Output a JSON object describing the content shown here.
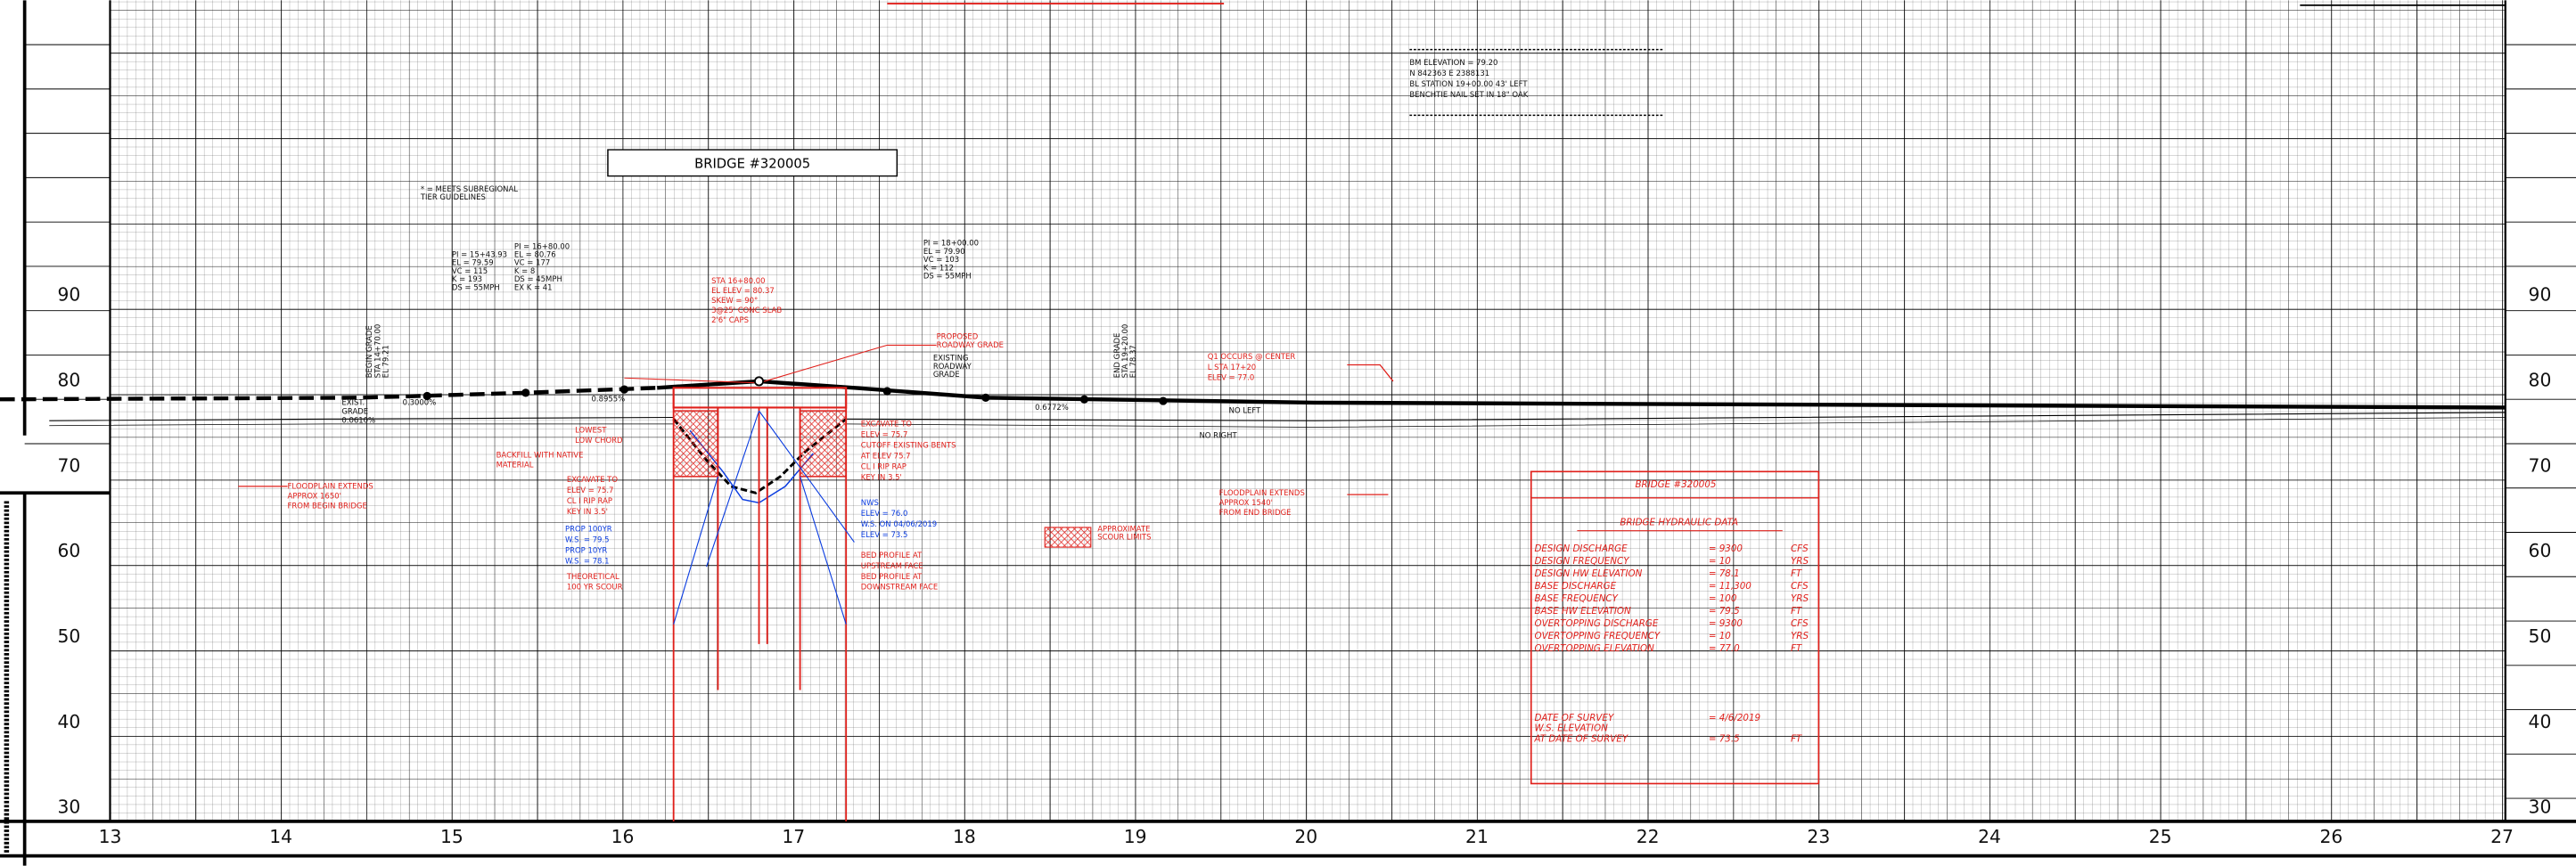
{
  "station_labels": [
    "13",
    "14",
    "15",
    "16",
    "17",
    "18",
    "19",
    "20",
    "21",
    "22",
    "23",
    "24",
    "25",
    "26",
    "27"
  ],
  "elevation_labels": [
    "90",
    "80",
    "70",
    "60",
    "50",
    "40",
    "30"
  ],
  "bridge_label": "BRIDGE #320005",
  "notes": [
    {
      "lines": [
        "* = MEETS SUBREGIONAL",
        "TIER GUIDELINES"
      ]
    },
    {
      "lines": [
        "PI = 15+43.93",
        "EL = 79.59",
        "VC = 115",
        "K = 193",
        "DS = 55MPH"
      ]
    },
    {
      "lines": [
        "PI = 16+80.00",
        "EL = 80.76",
        "VC = 177",
        "K = 8",
        "DS = 45MPH",
        "EX K = 41"
      ]
    },
    {
      "lines": [
        "PI = 18+00.00",
        "EL = 79.90",
        "VC = 103",
        "K = 112",
        "DS = 55MPH"
      ]
    },
    {
      "lines": [
        "BM              ELEVATION = 79.20",
        "N 842363          E 2388131",
        "BL STATION 19+00.00 43' LEFT",
        "BENCHTIE NAIL SET IN 18\" OAK"
      ]
    },
    {
      "lines": [
        "STA 16+80.00",
        "EL ELEV = 80.37",
        "SKEW = 90°",
        "3@25' CONC SLAB",
        "2'6\" CAPS"
      ]
    },
    {
      "lines": [
        "PROPOSED",
        "ROADWAY GRADE"
      ]
    },
    {
      "lines": [
        "EXISTING",
        "ROADWAY",
        "GRADE"
      ]
    },
    {
      "lines": [
        "Q1 OCCURS @ CENTER",
        "L STA 17+20",
        "ELEV = 77.0"
      ]
    },
    {
      "lines": [
        "NO LEFT"
      ]
    },
    {
      "lines": [
        "NO RIGHT"
      ]
    },
    {
      "lines": [
        "FLOODPLAIN EXTENDS",
        "APPROX 1650'",
        "FROM BEGIN BRIDGE"
      ]
    },
    {
      "lines": [
        "LOWEST",
        "LOW CHORD"
      ]
    },
    {
      "lines": [
        "BACKFILL WITH NATIVE",
        "MATERIAL"
      ]
    },
    {
      "lines": [
        "EXCAVATE TO",
        "ELEV = 75.7",
        "CL I RIP RAP",
        "KEY IN 3.5'"
      ]
    },
    {
      "lines": [
        "PROP 100YR",
        "W.S. = 79.5",
        "PROP 10YR",
        "W.S. = 78.1"
      ]
    },
    {
      "lines": [
        "THEORETICAL",
        "100 YR SCOUR"
      ]
    },
    {
      "lines": [
        "EXCAVATE TO",
        "ELEV = 75.7",
        "CUTOFF EXISTING BENTS",
        "AT ELEV 75.7",
        "CL I RIP RAP",
        "KEY IN 3.5'"
      ]
    },
    {
      "lines": [
        "NWS",
        "ELEV = 76.0",
        "W.S. ON 04/06/2019",
        "ELEV = 73.5"
      ]
    },
    {
      "lines": [
        "BED PROFILE AT",
        "UPSTREAM FACE",
        "BED PROFILE AT",
        "DOWNSTREAM FACE"
      ]
    },
    {
      "lines": [
        "FLOODPLAIN EXTENDS",
        "APPROX 1540'",
        "FROM END BRIDGE"
      ]
    },
    {
      "lines": [
        "APPROXIMATE",
        "SCOUR LIMITS"
      ]
    },
    {
      "lines": [
        "EXIST.",
        "GRADE",
        "0.0610%"
      ]
    },
    {
      "lines": [
        "0.3000%"
      ]
    },
    {
      "lines": [
        "0.8955%"
      ]
    },
    {
      "lines": [
        "0.6772%"
      ]
    },
    {
      "lines": [
        "BEGIN GRADE",
        "STA 14+70.00",
        "EL 79.21"
      ]
    },
    {
      "lines": [
        "END GRADE",
        "STA 19+20.00",
        "EL 78.37"
      ]
    }
  ],
  "hydraulic_table": {
    "title": "BRIDGE #320005",
    "subtitle": "BRIDGE HYDRAULIC DATA",
    "rows": [
      [
        "DESIGN DISCHARGE",
        "= 9300",
        "CFS"
      ],
      [
        "DESIGN FREQUENCY",
        "= 10",
        "YRS"
      ],
      [
        "DESIGN HW ELEVATION",
        "= 78.1",
        "FT"
      ],
      [
        "BASE DISCHARGE",
        "= 11,300",
        "CFS"
      ],
      [
        "BASE FREQUENCY",
        "= 100",
        "YRS"
      ],
      [
        "BASE HW ELEVATION",
        "= 79.5",
        "FT"
      ],
      [
        "OVERTOPPING DISCHARGE",
        "= 9300",
        "CFS"
      ],
      [
        "OVERTOPPING FREQUENCY",
        "= 10",
        "YRS"
      ],
      [
        "OVERTOPPING ELEVATION",
        "= 77.0",
        "FT"
      ]
    ],
    "survey": [
      [
        "DATE OF SURVEY",
        "= 4/6/2019",
        ""
      ],
      [
        "W.S. ELEVATION",
        "",
        ""
      ],
      [
        "AT DATE OF SURVEY",
        "= 73.5",
        "FT"
      ]
    ]
  }
}
